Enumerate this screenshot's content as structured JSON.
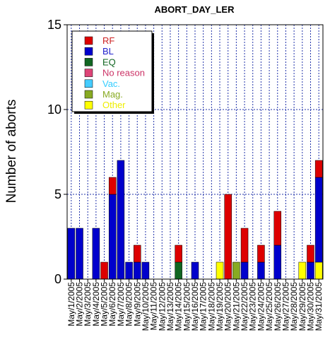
{
  "chart_data": {
    "type": "bar",
    "stacked": true,
    "title": "ABORT_DAY_LER",
    "xlabel": "",
    "ylabel": "Number of aborts",
    "ylim": [
      0,
      15
    ],
    "yticks": [
      "0",
      "5",
      "10",
      "15"
    ],
    "grid": "dotted vertical and horizontal",
    "legend_position": "top-left",
    "categories": [
      "May/1/2005",
      "May/2/2005",
      "May/3/2005",
      "May/4/2005",
      "May/5/2005",
      "May/6/2005",
      "May/7/2005",
      "May/8/2005",
      "May/9/2005",
      "May/10/2005",
      "May/11/2005",
      "May/12/2005",
      "May/13/2005",
      "May/14/2005",
      "May/15/2005",
      "May/16/2005",
      "May/17/2005",
      "May/18/2005",
      "May/19/2005",
      "May/20/2005",
      "May/21/2005",
      "May/22/2005",
      "May/23/2005",
      "May/24/2005",
      "May/25/2005",
      "May/26/2005",
      "May/27/2005",
      "May/28/2005",
      "May/29/2005",
      "May/30/2005",
      "May/31/2005"
    ],
    "series": [
      {
        "name": "Other",
        "color": "#ffff00",
        "values": [
          0,
          0,
          0,
          0,
          0,
          0,
          0,
          0,
          0,
          0,
          0,
          0,
          0,
          0,
          0,
          0,
          0,
          0,
          1,
          0,
          0,
          0,
          0,
          0,
          0,
          0,
          0,
          0,
          1,
          0,
          1
        ]
      },
      {
        "name": "Mag.",
        "color": "#88aa22",
        "values": [
          0,
          0,
          0,
          0,
          0,
          0,
          0,
          0,
          0,
          0,
          0,
          0,
          0,
          0,
          0,
          0,
          0,
          0,
          0,
          0,
          1,
          0,
          0,
          0,
          0,
          0,
          0,
          0,
          0,
          0,
          0
        ]
      },
      {
        "name": "Vac.",
        "color": "#44ccff",
        "values": [
          0,
          0,
          0,
          0,
          0,
          0,
          0,
          0,
          0,
          0,
          0,
          0,
          0,
          0,
          0,
          0,
          0,
          0,
          0,
          0,
          0,
          0,
          0,
          0,
          0,
          0,
          0,
          0,
          0,
          0,
          0
        ]
      },
      {
        "name": "No reason",
        "color": "#dd4477",
        "values": [
          0,
          0,
          0,
          0,
          0,
          0,
          0,
          0,
          0,
          0,
          0,
          0,
          0,
          0,
          0,
          0,
          0,
          0,
          0,
          0,
          0,
          0,
          0,
          0,
          0,
          0,
          0,
          0,
          0,
          0,
          0
        ]
      },
      {
        "name": "EQ",
        "color": "#116622",
        "values": [
          0,
          0,
          0,
          0,
          0,
          0,
          0,
          0,
          0,
          0,
          0,
          0,
          0,
          1,
          0,
          0,
          0,
          0,
          0,
          0,
          0,
          0,
          0,
          0,
          0,
          0,
          0,
          0,
          0,
          0,
          0
        ]
      },
      {
        "name": "BL",
        "color": "#0000cc",
        "values": [
          3,
          3,
          0,
          3,
          0,
          5,
          7,
          1,
          1,
          1,
          0,
          0,
          0,
          0,
          0,
          1,
          0,
          0,
          0,
          0,
          0,
          1,
          0,
          1,
          0,
          2,
          0,
          0,
          0,
          1,
          5
        ]
      },
      {
        "name": "RF",
        "color": "#dd0000",
        "values": [
          0,
          0,
          0,
          0,
          1,
          1,
          0,
          0,
          1,
          0,
          0,
          0,
          0,
          1,
          0,
          0,
          0,
          0,
          0,
          5,
          0,
          2,
          0,
          1,
          0,
          2,
          0,
          0,
          0,
          1,
          1
        ]
      }
    ],
    "legend_order": [
      {
        "name": "RF",
        "color": "#dd0000",
        "text_color": "#cc2222"
      },
      {
        "name": "BL",
        "color": "#0000cc",
        "text_color": "#2222cc"
      },
      {
        "name": "EQ",
        "color": "#116622",
        "text_color": "#116622"
      },
      {
        "name": "No reason",
        "color": "#dd4477",
        "text_color": "#cc3366"
      },
      {
        "name": "Vac.",
        "color": "#44ccff",
        "text_color": "#33ccff"
      },
      {
        "name": "Mag.",
        "color": "#88aa22",
        "text_color": "#88aa22"
      },
      {
        "name": "Other",
        "color": "#ffff00",
        "text_color": "#eeee00"
      }
    ]
  }
}
